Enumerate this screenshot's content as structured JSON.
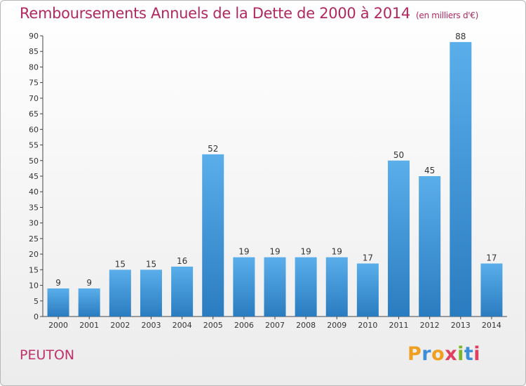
{
  "title": "Remboursements Annuels de la Dette de 2000 à 2014",
  "unit": "(en milliers d'€)",
  "commune": "PEUTON",
  "logo": {
    "letters": [
      "P",
      "r",
      "o",
      "x",
      "i",
      "t",
      "i"
    ],
    "colors": [
      "#f0a020",
      "#3c8fd6",
      "#f0a020",
      "#e04060",
      "#7ab829",
      "#3c8fd6",
      "#e04060"
    ]
  },
  "colors": {
    "bar": "#4a9ee0",
    "title": "#b0285f",
    "axis": "#444444"
  },
  "chart_data": {
    "type": "bar",
    "categories": [
      "2000",
      "2001",
      "2002",
      "2003",
      "2004",
      "2005",
      "2006",
      "2007",
      "2008",
      "2009",
      "2010",
      "2011",
      "2012",
      "2013",
      "2014"
    ],
    "values": [
      9,
      9,
      15,
      15,
      16,
      52,
      19,
      19,
      19,
      19,
      17,
      50,
      45,
      88,
      17
    ],
    "data_labels": [
      "9",
      "9",
      "15",
      "15",
      "16",
      "52",
      "19",
      "19",
      "19",
      "19",
      "17",
      "50",
      "45",
      "88",
      "17"
    ],
    "ylim": [
      0,
      90
    ],
    "yticks": [
      0,
      5,
      10,
      15,
      20,
      25,
      30,
      35,
      40,
      45,
      50,
      55,
      60,
      65,
      70,
      75,
      80,
      85,
      90
    ],
    "ytick_labels": [
      "0",
      "5",
      "10",
      "15",
      "20",
      "25",
      "30",
      "35",
      "40",
      "45",
      "50",
      "55",
      "60",
      "65",
      "70",
      "75",
      "80",
      "85",
      "90"
    ],
    "grid": false,
    "xlabel": "",
    "ylabel": ""
  }
}
